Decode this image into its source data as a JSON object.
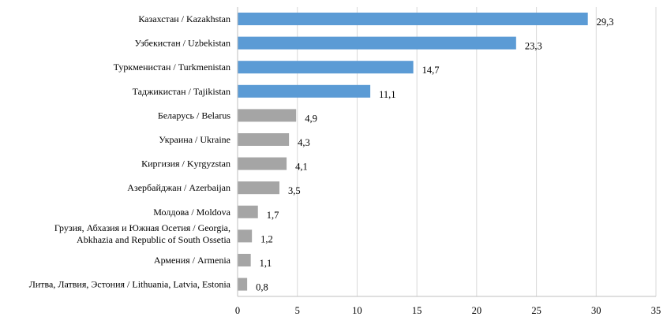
{
  "chart_data": {
    "type": "bar",
    "orientation": "horizontal",
    "categories": [
      "Казахстан / Kazakhstan",
      "Узбекистан / Uzbekistan",
      "Туркменистан / Turkmenistan",
      "Таджикистан / Tajikistan",
      "Беларусь / Belarus",
      "Украина / Ukraine",
      "Киргизия / Kyrgyzstan",
      "Азербайджан / Azerbaijan",
      "Молдова / Moldova",
      "Грузия, Абхазия и Южная Осетия / Georgia, Abkhazia and Republic of South Ossetia",
      "Армения / Armenia",
      "Литва, Латвия, Эстония / Lithuania, Latvia, Estonia"
    ],
    "category_lines": [
      [
        "Казахстан / Kazakhstan"
      ],
      [
        "Узбекистан / Uzbekistan"
      ],
      [
        "Туркменистан / Turkmenistan"
      ],
      [
        "Таджикистан / Tajikistan"
      ],
      [
        "Беларусь / Belarus"
      ],
      [
        "Украина / Ukraine"
      ],
      [
        "Киргизия / Kyrgyzstan"
      ],
      [
        "Азербайджан / Azerbaijan"
      ],
      [
        "Молдова / Moldova"
      ],
      [
        "Грузия, Абхазия и Южная Осетия / Georgia,",
        "Abkhazia and Republic of South Ossetia"
      ],
      [
        "Армения / Armenia"
      ],
      [
        "Литва, Латвия, Эстония / Lithuania, Latvia, Estonia"
      ]
    ],
    "values": [
      29.3,
      23.3,
      14.7,
      11.1,
      4.9,
      4.3,
      4.1,
      3.5,
      1.7,
      1.2,
      1.1,
      0.8
    ],
    "value_labels": [
      "29,3",
      "23,3",
      "14,7",
      "11,1",
      "4,9",
      "4,3",
      "4,1",
      "3,5",
      "1,7",
      "1,2",
      "1,1",
      "0,8"
    ],
    "bar_colors": [
      "#5b9bd5",
      "#5b9bd5",
      "#5b9bd5",
      "#5b9bd5",
      "#a5a5a5",
      "#a5a5a5",
      "#a5a5a5",
      "#a5a5a5",
      "#a5a5a5",
      "#a5a5a5",
      "#a5a5a5",
      "#a5a5a5"
    ],
    "xlim": [
      0,
      35
    ],
    "x_ticks": [
      0,
      5,
      10,
      15,
      20,
      25,
      30,
      35
    ],
    "grid": "vertical",
    "grid_color": "#d9d9d9",
    "title": "",
    "xlabel": "",
    "ylabel": "",
    "legend": "none"
  }
}
